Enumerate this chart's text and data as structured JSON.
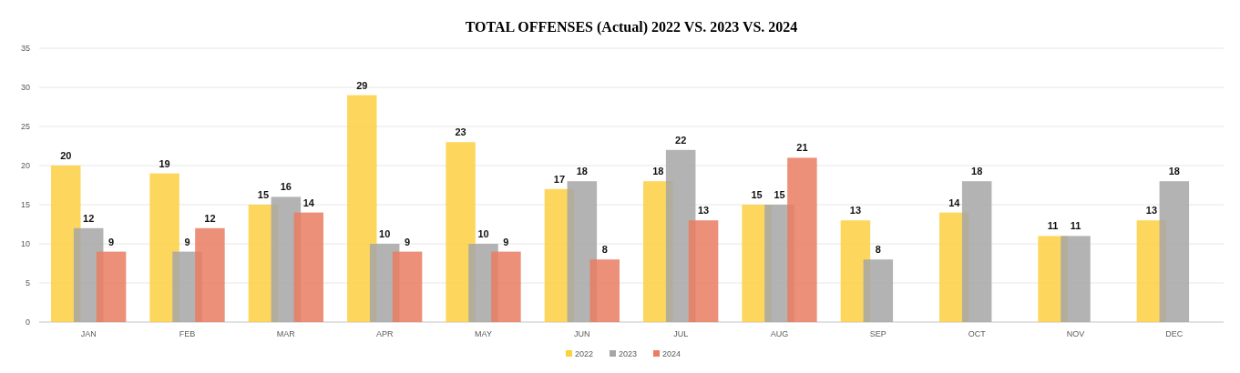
{
  "chart_data": {
    "type": "bar",
    "title": "TOTAL OFFENSES (Actual) 2022 VS. 2023 VS. 2024",
    "categories": [
      "JAN",
      "FEB",
      "MAR",
      "APR",
      "MAY",
      "JUN",
      "JUL",
      "AUG",
      "SEP",
      "OCT",
      "NOV",
      "DEC"
    ],
    "series": [
      {
        "name": "2022",
        "color": "#fdd041",
        "values": [
          20,
          19,
          15,
          29,
          23,
          17,
          18,
          15,
          13,
          14,
          11,
          13
        ]
      },
      {
        "name": "2023",
        "color": "#a6a6a6",
        "values": [
          12,
          9,
          16,
          10,
          10,
          18,
          22,
          15,
          8,
          18,
          11,
          18
        ]
      },
      {
        "name": "2024",
        "color": "#e97c63",
        "values": [
          9,
          12,
          14,
          9,
          9,
          8,
          13,
          21,
          null,
          null,
          null,
          null
        ]
      }
    ],
    "ylim": [
      0,
      35
    ],
    "yticks": [
      0,
      5,
      10,
      15,
      20,
      25,
      30,
      35
    ],
    "grid": "y",
    "legend": "bottom",
    "data_labels": true
  }
}
